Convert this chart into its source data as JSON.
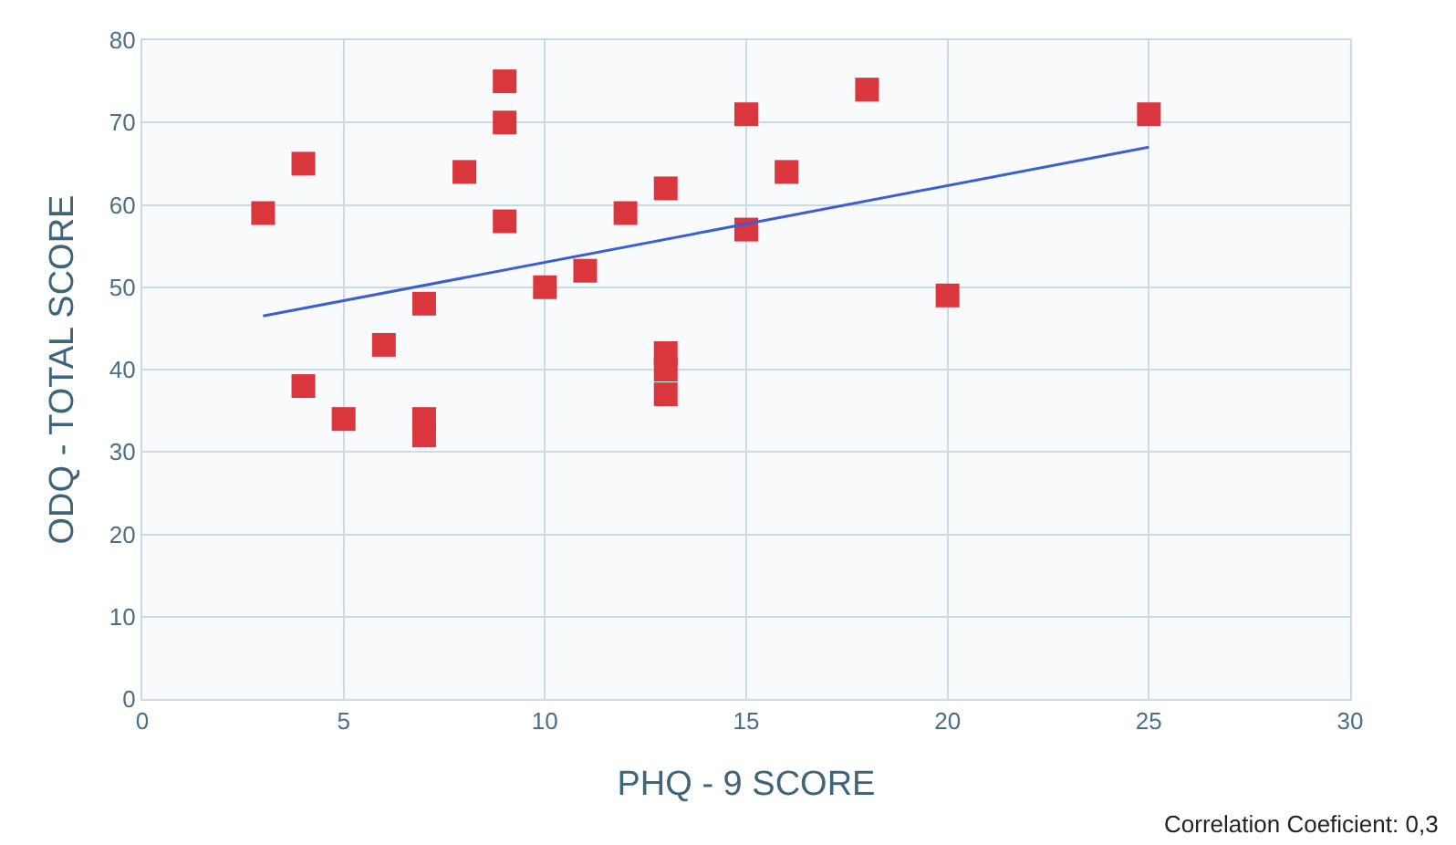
{
  "chart_data": {
    "type": "scatter",
    "xlabel": "PHQ - 9 SCORE",
    "ylabel": "ODQ - TOTAL SCORE",
    "annotations": [
      "Correlation Coeficient: 0,3"
    ],
    "xlim": [
      0,
      30
    ],
    "xticks": [
      0,
      5,
      10,
      15,
      20,
      25,
      30
    ],
    "ylim": [
      0,
      80
    ],
    "yticks": [
      0,
      10,
      20,
      30,
      40,
      50,
      60,
      70,
      80
    ],
    "grid": true,
    "marker": "square",
    "series": [
      {
        "color": "#d9363e",
        "x": [
          3,
          4,
          4,
          5,
          6,
          7,
          7,
          7,
          8,
          9,
          9,
          9,
          10,
          11,
          12,
          13,
          13,
          13,
          13,
          15,
          15,
          16,
          18,
          20,
          25
        ],
        "values": [
          59,
          65,
          38,
          34,
          43,
          48,
          34,
          32,
          64,
          75,
          70,
          58,
          50,
          52,
          59,
          62,
          42,
          40,
          37,
          71,
          57,
          64,
          74,
          49,
          71
        ]
      },
      {
        "type": "line",
        "color": "#3b5fd0",
        "x": [
          3,
          25
        ],
        "values": [
          46.5,
          67
        ],
        "marker": "none",
        "line_style": "solid"
      }
    ]
  }
}
